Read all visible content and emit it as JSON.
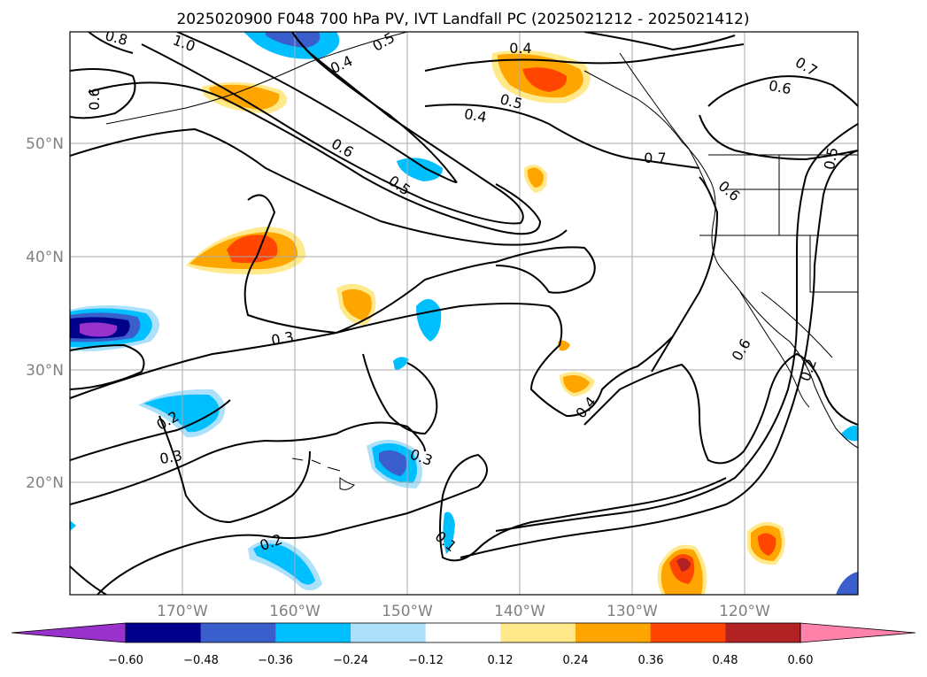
{
  "title": "2025020900 F048 700 hPa PV, IVT Landfall PC (2025021212 - 2025021412)",
  "map": {
    "lat_labels": [
      "50°N",
      "40°N",
      "30°N",
      "20°N"
    ],
    "lon_labels": [
      "170°W",
      "160°W",
      "150°W",
      "140°W",
      "130°W",
      "120°W"
    ],
    "contour_labels": [
      "0.8",
      "1.0",
      "0.6",
      "0.5",
      "0.4",
      "0.4",
      "0.4",
      "0.5",
      "0.7",
      "0.6",
      "0.6",
      "0.5",
      "0.7",
      "0.6",
      "0.5",
      "0.3",
      "0.2",
      "0.3",
      "0.3",
      "0.4",
      "0.6",
      "0.2",
      "0.2",
      "0.1"
    ]
  },
  "colorbar": {
    "tick_labels": [
      "−0.60",
      "−0.48",
      "−0.36",
      "−0.24",
      "−0.12",
      "0.12",
      "0.24",
      "0.36",
      "0.48",
      "0.60"
    ],
    "colors": [
      "#9932CC",
      "#00008B",
      "#3A5FCD",
      "#00BFFF",
      "#ADE0FA",
      "#FFFFFF",
      "#FFE98A",
      "#FFA500",
      "#FF4500",
      "#B22222",
      "#FF82AB"
    ]
  }
}
